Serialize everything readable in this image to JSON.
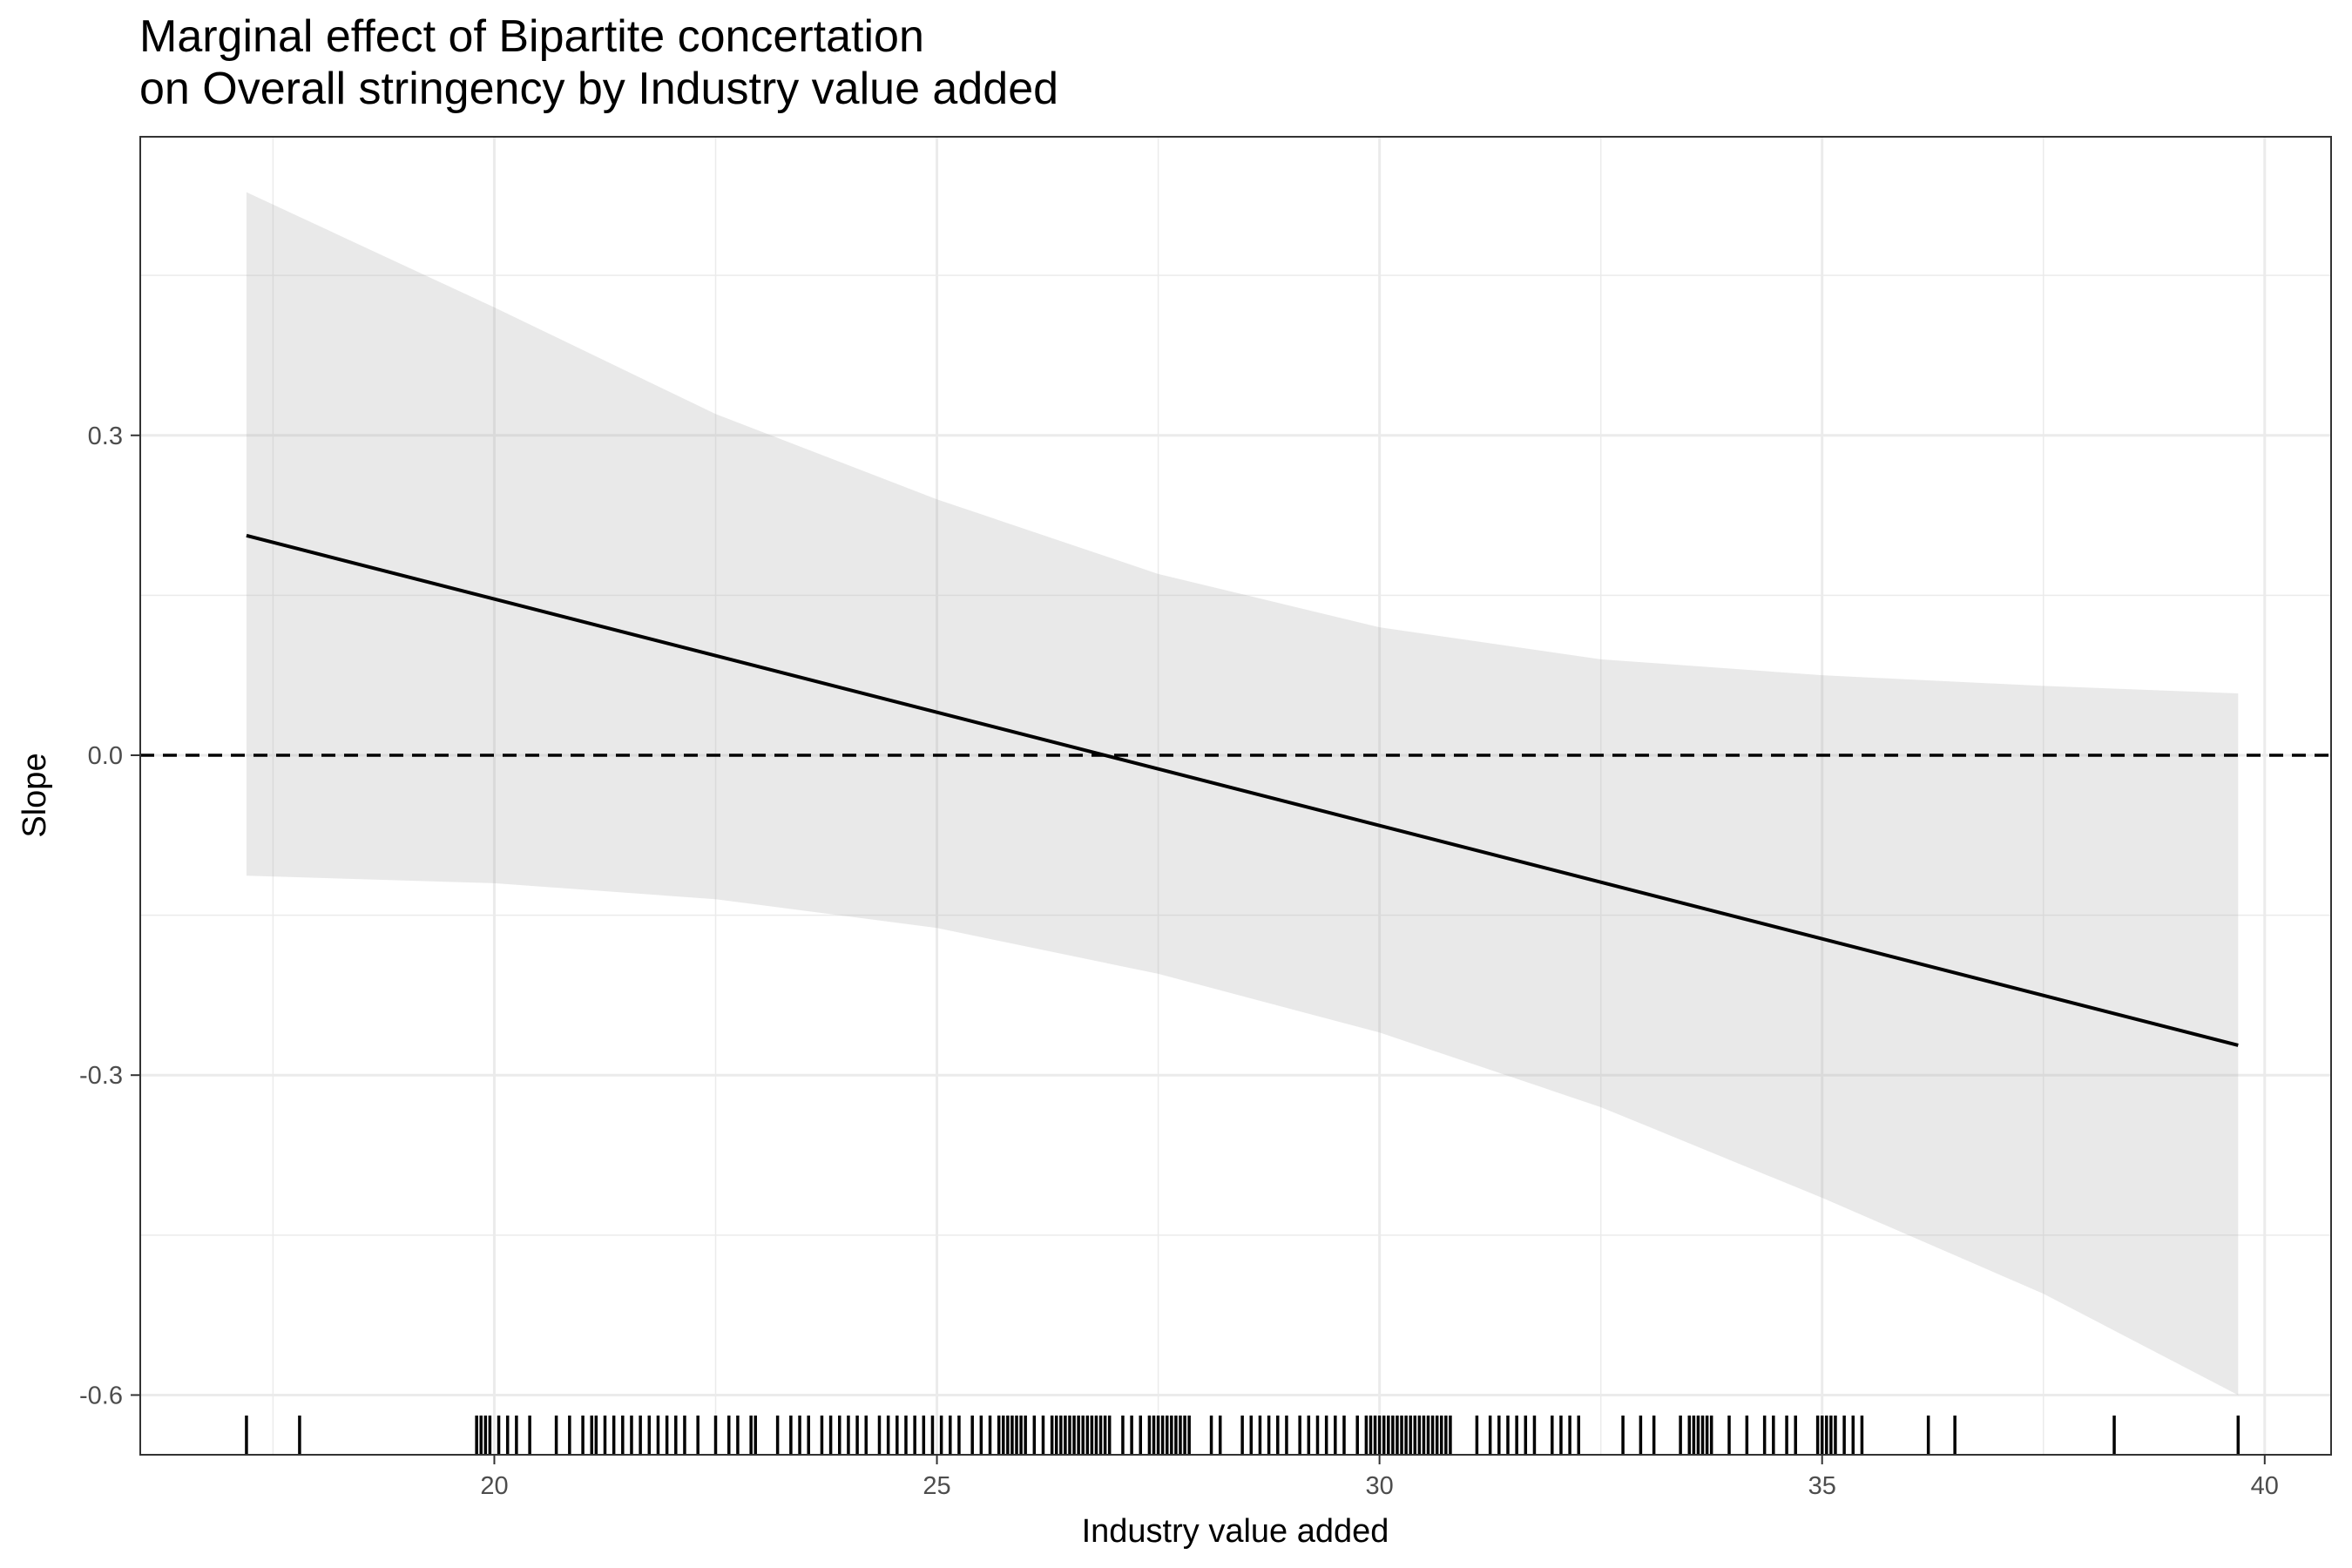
{
  "chart_data": {
    "type": "line",
    "title": "Marginal effect of Bipartite concertation",
    "subtitle": "on Overall stringency by Industry value added",
    "xlabel": "Industry value added",
    "ylabel": "Slope",
    "xlim": [
      16.0,
      40.75
    ],
    "ylim": [
      -0.656,
      0.58
    ],
    "x_ticks": [
      20,
      25,
      30,
      35,
      40
    ],
    "y_ticks": [
      0.3,
      0.0,
      -0.3,
      -0.6
    ],
    "x_tick_labels": [
      "20",
      "25",
      "30",
      "35",
      "40"
    ],
    "y_tick_labels": [
      "0.3",
      "0.0",
      "-0.3",
      "-0.6"
    ],
    "grid": true,
    "reference_line": {
      "y": 0.0,
      "style": "dashed"
    },
    "series": [
      {
        "type": "line",
        "x": [
          17.2,
          39.7
        ],
        "y": [
          0.206,
          -0.272
        ]
      }
    ],
    "confidence_band": {
      "x": [
        17.2,
        20,
        22.5,
        25,
        27.5,
        30,
        32.5,
        35,
        37.5,
        39.7
      ],
      "upper": [
        0.528,
        0.42,
        0.32,
        0.24,
        0.17,
        0.12,
        0.09,
        0.075,
        0.065,
        0.058
      ],
      "lower": [
        -0.113,
        -0.12,
        -0.135,
        -0.162,
        -0.205,
        -0.26,
        -0.33,
        -0.415,
        -0.505,
        -0.6
      ]
    },
    "rug_x": [
      17.2,
      17.8,
      19.8,
      19.85,
      19.9,
      19.95,
      20.05,
      20.15,
      20.25,
      20.4,
      20.7,
      20.85,
      21.0,
      21.1,
      21.15,
      21.25,
      21.35,
      21.45,
      21.55,
      21.65,
      21.75,
      21.85,
      21.95,
      22.05,
      22.15,
      22.3,
      22.5,
      22.65,
      22.75,
      22.9,
      22.95,
      23.2,
      23.35,
      23.45,
      23.55,
      23.7,
      23.8,
      23.9,
      24.0,
      24.1,
      24.2,
      24.35,
      24.45,
      24.55,
      24.65,
      24.75,
      24.85,
      24.95,
      25.05,
      25.15,
      25.25,
      25.4,
      25.5,
      25.6,
      25.7,
      25.75,
      25.8,
      25.85,
      25.9,
      25.95,
      26.0,
      26.1,
      26.2,
      26.3,
      26.35,
      26.4,
      26.45,
      26.5,
      26.55,
      26.6,
      26.65,
      26.7,
      26.75,
      26.8,
      26.85,
      26.9,
      26.95,
      27.1,
      27.2,
      27.3,
      27.4,
      27.45,
      27.5,
      27.55,
      27.6,
      27.65,
      27.7,
      27.75,
      27.8,
      27.85,
      28.1,
      28.2,
      28.45,
      28.55,
      28.65,
      28.75,
      28.85,
      28.95,
      29.1,
      29.2,
      29.3,
      29.4,
      29.5,
      29.6,
      29.75,
      29.85,
      29.9,
      29.95,
      30.0,
      30.05,
      30.1,
      30.15,
      30.2,
      30.25,
      30.3,
      30.35,
      30.4,
      30.45,
      30.5,
      30.55,
      30.6,
      30.65,
      30.7,
      30.75,
      30.8,
      31.1,
      31.25,
      31.35,
      31.45,
      31.55,
      31.65,
      31.75,
      31.95,
      32.05,
      32.15,
      32.25,
      32.75,
      32.95,
      33.1,
      33.4,
      33.5,
      33.55,
      33.6,
      33.65,
      33.7,
      33.75,
      33.95,
      34.15,
      34.35,
      34.45,
      34.6,
      34.7,
      34.95,
      35.0,
      35.05,
      35.1,
      35.15,
      35.25,
      35.35,
      35.45,
      36.2,
      36.5,
      38.3,
      39.7
    ]
  }
}
